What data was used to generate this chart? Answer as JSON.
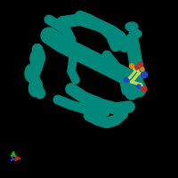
{
  "bg_color": "#000000",
  "protein_color": "#00897b",
  "protein_color2": "#00796b",
  "ligand_color_main": "#c8d44e",
  "ligand_color_blue": "#2244cc",
  "ligand_color_red": "#cc2222",
  "ligand_color_orange": "#dd8800",
  "axis_x_color": "#cc2200",
  "axis_y_color": "#22aa00",
  "axis_z_color": "#2244dd",
  "helices_right": [
    [
      152,
      162,
      14,
      10,
      0
    ],
    [
      148,
      170,
      14,
      10,
      0
    ]
  ],
  "helices_left": [
    [
      42,
      135,
      16,
      22,
      -10
    ],
    [
      35,
      118,
      14,
      20,
      -5
    ],
    [
      40,
      102,
      15,
      21,
      -8
    ]
  ]
}
